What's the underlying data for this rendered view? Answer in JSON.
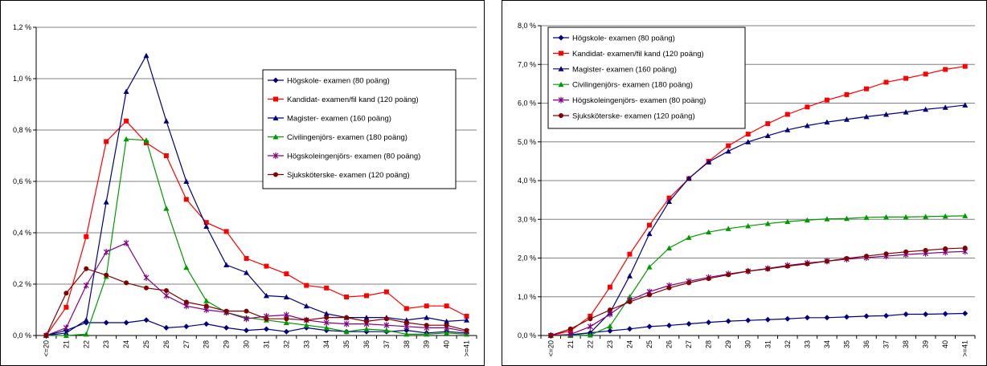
{
  "colors": {
    "background": "#ffffff",
    "gridline": "#808080",
    "series": [
      "#000080",
      "#ff0000",
      "#000080",
      "#009900",
      "#800080",
      "#800000"
    ]
  },
  "chart_data": [
    {
      "type": "line",
      "title": "",
      "xlabel": "",
      "ylabel": "",
      "grid": true,
      "legend_position": "upper-right",
      "y_tick_labels": [
        "0,0 %",
        "0,2 %",
        "0,4 %",
        "0,6 %",
        "0,8 %",
        "1,0 %",
        "1,2 %"
      ],
      "ylim": [
        0,
        1.2
      ],
      "categories": [
        "<=20",
        "21",
        "22",
        "23",
        "24",
        "25",
        "26",
        "27",
        "28",
        "29",
        "30",
        "31",
        "32",
        "33",
        "34",
        "35",
        "36",
        "37",
        "38",
        "39",
        "40",
        ">=41"
      ],
      "series": [
        {
          "name": "Högskole- examen (80 poäng)",
          "marker": "diamond",
          "values": [
            0,
            0.02,
            0.05,
            0.05,
            0.05,
            0.06,
            0.03,
            0.035,
            0.045,
            0.03,
            0.02,
            0.025,
            0.015,
            0.03,
            0.02,
            0.015,
            0.015,
            0.015,
            0.02,
            0.01,
            0.015,
            0.01
          ]
        },
        {
          "name": "Kandidat- examen/fil kand (120 poäng)",
          "marker": "square",
          "values": [
            0,
            0.11,
            0.385,
            0.755,
            0.835,
            0.75,
            0.7,
            0.53,
            0.44,
            0.405,
            0.3,
            0.27,
            0.24,
            0.195,
            0.185,
            0.15,
            0.155,
            0.17,
            0.105,
            0.115,
            0.115,
            0.075
          ]
        },
        {
          "name": "Magister- examen (160 poäng)",
          "marker": "triangle",
          "values": [
            0,
            0.01,
            0.06,
            0.52,
            0.95,
            1.09,
            0.835,
            0.6,
            0.425,
            0.275,
            0.245,
            0.155,
            0.15,
            0.115,
            0.085,
            0.07,
            0.07,
            0.07,
            0.06,
            0.07,
            0.055,
            0.06
          ]
        },
        {
          "name": "Civilingenjörs- examen (180 poäng)",
          "marker": "triangle",
          "values": [
            0,
            0.0,
            0.005,
            0.23,
            0.765,
            0.76,
            0.495,
            0.265,
            0.135,
            0.09,
            0.07,
            0.06,
            0.05,
            0.04,
            0.03,
            0.015,
            0.025,
            0.02,
            0.005,
            0.005,
            0.01,
            0.005
          ]
        },
        {
          "name": "Högskoleingenjörs- examen (80 poäng)",
          "marker": "star",
          "values": [
            0,
            0.03,
            0.195,
            0.325,
            0.36,
            0.225,
            0.155,
            0.115,
            0.1,
            0.09,
            0.065,
            0.075,
            0.08,
            0.06,
            0.05,
            0.045,
            0.045,
            0.04,
            0.035,
            0.03,
            0.03,
            0.015
          ]
        },
        {
          "name": "Sjuksköterske- examen (120 poäng)",
          "marker": "circle",
          "values": [
            0,
            0.165,
            0.26,
            0.235,
            0.205,
            0.185,
            0.175,
            0.13,
            0.115,
            0.095,
            0.095,
            0.065,
            0.065,
            0.06,
            0.07,
            0.07,
            0.055,
            0.065,
            0.05,
            0.04,
            0.04,
            0.02
          ]
        }
      ]
    },
    {
      "type": "line",
      "title": "",
      "xlabel": "",
      "ylabel": "",
      "grid": true,
      "legend_position": "upper-left",
      "y_tick_labels": [
        "0,0 %",
        "1,0 %",
        "2,0 %",
        "3,0 %",
        "4,0 %",
        "5,0 %",
        "6,0 %",
        "7,0 %",
        "8,0 %"
      ],
      "ylim": [
        0,
        8
      ],
      "categories": [
        "<=20",
        "21",
        "22",
        "23",
        "24",
        "25",
        "26",
        "27",
        "28",
        "29",
        "30",
        "31",
        "32",
        "33",
        "34",
        "35",
        "36",
        "37",
        "38",
        "39",
        "40",
        ">=41"
      ],
      "series": [
        {
          "name": "Högskole- examen (80 poäng)",
          "marker": "diamond",
          "values": [
            0,
            0.02,
            0.07,
            0.12,
            0.17,
            0.23,
            0.26,
            0.3,
            0.34,
            0.37,
            0.39,
            0.41,
            0.43,
            0.46,
            0.46,
            0.48,
            0.5,
            0.51,
            0.55,
            0.55,
            0.56,
            0.57
          ]
        },
        {
          "name": "Kandidat- examen/fil kand (120 poäng)",
          "marker": "square",
          "values": [
            0,
            0.12,
            0.5,
            1.25,
            2.1,
            2.85,
            3.55,
            4.05,
            4.5,
            4.9,
            5.2,
            5.47,
            5.71,
            5.9,
            6.08,
            6.22,
            6.37,
            6.54,
            6.64,
            6.75,
            6.87,
            6.95
          ]
        },
        {
          "name": "Magister- examen (160 poäng)",
          "marker": "triangle",
          "values": [
            0,
            0.01,
            0.07,
            0.59,
            1.54,
            2.63,
            3.46,
            4.06,
            4.48,
            4.76,
            5.0,
            5.16,
            5.31,
            5.42,
            5.51,
            5.58,
            5.65,
            5.71,
            5.77,
            5.84,
            5.89,
            5.95
          ]
        },
        {
          "name": "Civilingenjörs- examen (180 poäng)",
          "marker": "triangle",
          "values": [
            0,
            0.0,
            0.01,
            0.24,
            1.0,
            1.77,
            2.26,
            2.53,
            2.67,
            2.76,
            2.83,
            2.89,
            2.94,
            2.98,
            3.01,
            3.02,
            3.05,
            3.06,
            3.06,
            3.07,
            3.08,
            3.09
          ]
        },
        {
          "name": "Högskoleingenjörs- examen (80 poäng)",
          "marker": "star",
          "values": [
            0,
            0.03,
            0.23,
            0.55,
            0.91,
            1.13,
            1.29,
            1.4,
            1.5,
            1.59,
            1.66,
            1.73,
            1.81,
            1.87,
            1.92,
            1.97,
            2.01,
            2.05,
            2.09,
            2.12,
            2.15,
            2.17
          ]
        },
        {
          "name": "Sjuksköterske- examen (120 poäng)",
          "marker": "circle",
          "values": [
            0,
            0.17,
            0.43,
            0.66,
            0.87,
            1.05,
            1.23,
            1.36,
            1.47,
            1.57,
            1.66,
            1.72,
            1.79,
            1.85,
            1.92,
            1.99,
            2.05,
            2.11,
            2.16,
            2.2,
            2.24,
            2.26
          ]
        }
      ]
    }
  ]
}
